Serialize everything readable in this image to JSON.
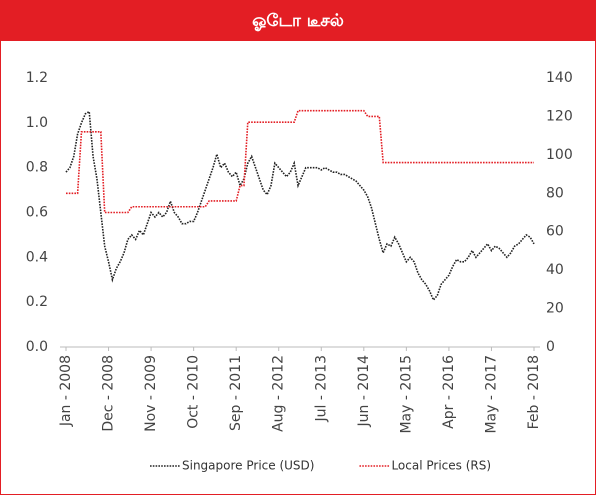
{
  "chart_data": {
    "type": "line",
    "title": "ஓடோ டீசல்",
    "categories": [
      "Jan - 2008",
      null,
      null,
      null,
      null,
      null,
      null,
      null,
      null,
      null,
      null,
      "Dec - 2008",
      null,
      null,
      null,
      null,
      null,
      null,
      null,
      null,
      null,
      null,
      "Nov - 2009",
      null,
      null,
      null,
      null,
      null,
      null,
      null,
      null,
      null,
      null,
      "Oct - 2010",
      null,
      null,
      null,
      null,
      null,
      null,
      null,
      null,
      null,
      null,
      "Sep - 2011",
      null,
      null,
      null,
      null,
      null,
      null,
      null,
      null,
      null,
      null,
      "Aug - 2012",
      null,
      null,
      null,
      null,
      null,
      null,
      null,
      null,
      null,
      null,
      "Jul - 2013",
      null,
      null,
      null,
      null,
      null,
      null,
      null,
      null,
      null,
      null,
      "Jun - 2014",
      null,
      null,
      null,
      null,
      null,
      null,
      null,
      null,
      null,
      null,
      "May - 2015",
      null,
      null,
      null,
      null,
      null,
      null,
      null,
      null,
      null,
      null,
      "Apr - 2016",
      null,
      null,
      null,
      null,
      null,
      null,
      null,
      null,
      null,
      null,
      "May - 2017",
      null,
      null,
      null,
      null,
      null,
      null,
      null,
      null,
      null,
      null,
      "Feb - 2018"
    ],
    "series": [
      {
        "name": "Singapore Price (USD)",
        "color": "#222222",
        "axis": "y",
        "values": [
          0.78,
          0.8,
          0.85,
          0.95,
          1.0,
          1.04,
          1.05,
          0.85,
          0.75,
          0.6,
          0.45,
          0.38,
          0.3,
          0.35,
          0.38,
          0.42,
          0.48,
          0.5,
          0.48,
          0.52,
          0.5,
          0.55,
          0.6,
          0.58,
          0.6,
          0.58,
          0.6,
          0.65,
          0.6,
          0.58,
          0.55,
          0.55,
          0.56,
          0.56,
          0.6,
          0.65,
          0.7,
          0.75,
          0.8,
          0.86,
          0.8,
          0.82,
          0.78,
          0.76,
          0.78,
          0.72,
          0.75,
          0.82,
          0.85,
          0.8,
          0.75,
          0.7,
          0.68,
          0.72,
          0.82,
          0.8,
          0.78,
          0.76,
          0.78,
          0.82,
          0.72,
          0.76,
          0.8,
          0.8,
          0.8,
          0.8,
          0.79,
          0.8,
          0.79,
          0.78,
          0.78,
          0.77,
          0.77,
          0.76,
          0.75,
          0.74,
          0.72,
          0.7,
          0.67,
          0.62,
          0.55,
          0.48,
          0.42,
          0.46,
          0.45,
          0.49,
          0.46,
          0.42,
          0.38,
          0.4,
          0.38,
          0.33,
          0.3,
          0.28,
          0.25,
          0.21,
          0.23,
          0.28,
          0.3,
          0.32,
          0.36,
          0.39,
          0.38,
          0.38,
          0.4,
          0.43,
          0.4,
          0.42,
          0.44,
          0.46,
          0.43,
          0.45,
          0.44,
          0.42,
          0.4,
          0.42,
          0.45,
          0.46,
          0.48,
          0.5,
          0.49,
          0.46
        ]
      },
      {
        "name": "Local Prices (RS)",
        "color": "#e31e24",
        "axis": "y2",
        "values": [
          80,
          80,
          80,
          80,
          112,
          112,
          112,
          112,
          112,
          112,
          70,
          70,
          70,
          70,
          70,
          70,
          70,
          73,
          73,
          73,
          73,
          73,
          73,
          73,
          73,
          73,
          73,
          73,
          73,
          73,
          73,
          73,
          73,
          73,
          73,
          73,
          73,
          76,
          76,
          76,
          76,
          76,
          76,
          76,
          76,
          84,
          84,
          117,
          117,
          117,
          117,
          117,
          117,
          117,
          117,
          117,
          117,
          117,
          117,
          117,
          123,
          123,
          123,
          123,
          123,
          123,
          123,
          123,
          123,
          123,
          123,
          123,
          123,
          123,
          123,
          123,
          123,
          123,
          120,
          120,
          120,
          120,
          96,
          96,
          96,
          96,
          96,
          96,
          96,
          96,
          96,
          96,
          96,
          96,
          96,
          96,
          96,
          96,
          96,
          96,
          96,
          96,
          96,
          96,
          96,
          96,
          96,
          96,
          96,
          96,
          96,
          96,
          96,
          96,
          96,
          96,
          96,
          96,
          96,
          96,
          96,
          96
        ]
      }
    ],
    "ylim": [
      0,
      1.2
    ],
    "yticks": [
      {
        "value": 0,
        "label": "0.0"
      },
      0.2,
      0.4,
      0.6,
      0.8,
      {
        "value": 1,
        "label": "1.0"
      },
      1.2
    ],
    "y2lim": [
      0,
      140
    ],
    "y2ticks": [
      0,
      20,
      40,
      60,
      80,
      100,
      120,
      140
    ],
    "legend": "bottom"
  }
}
